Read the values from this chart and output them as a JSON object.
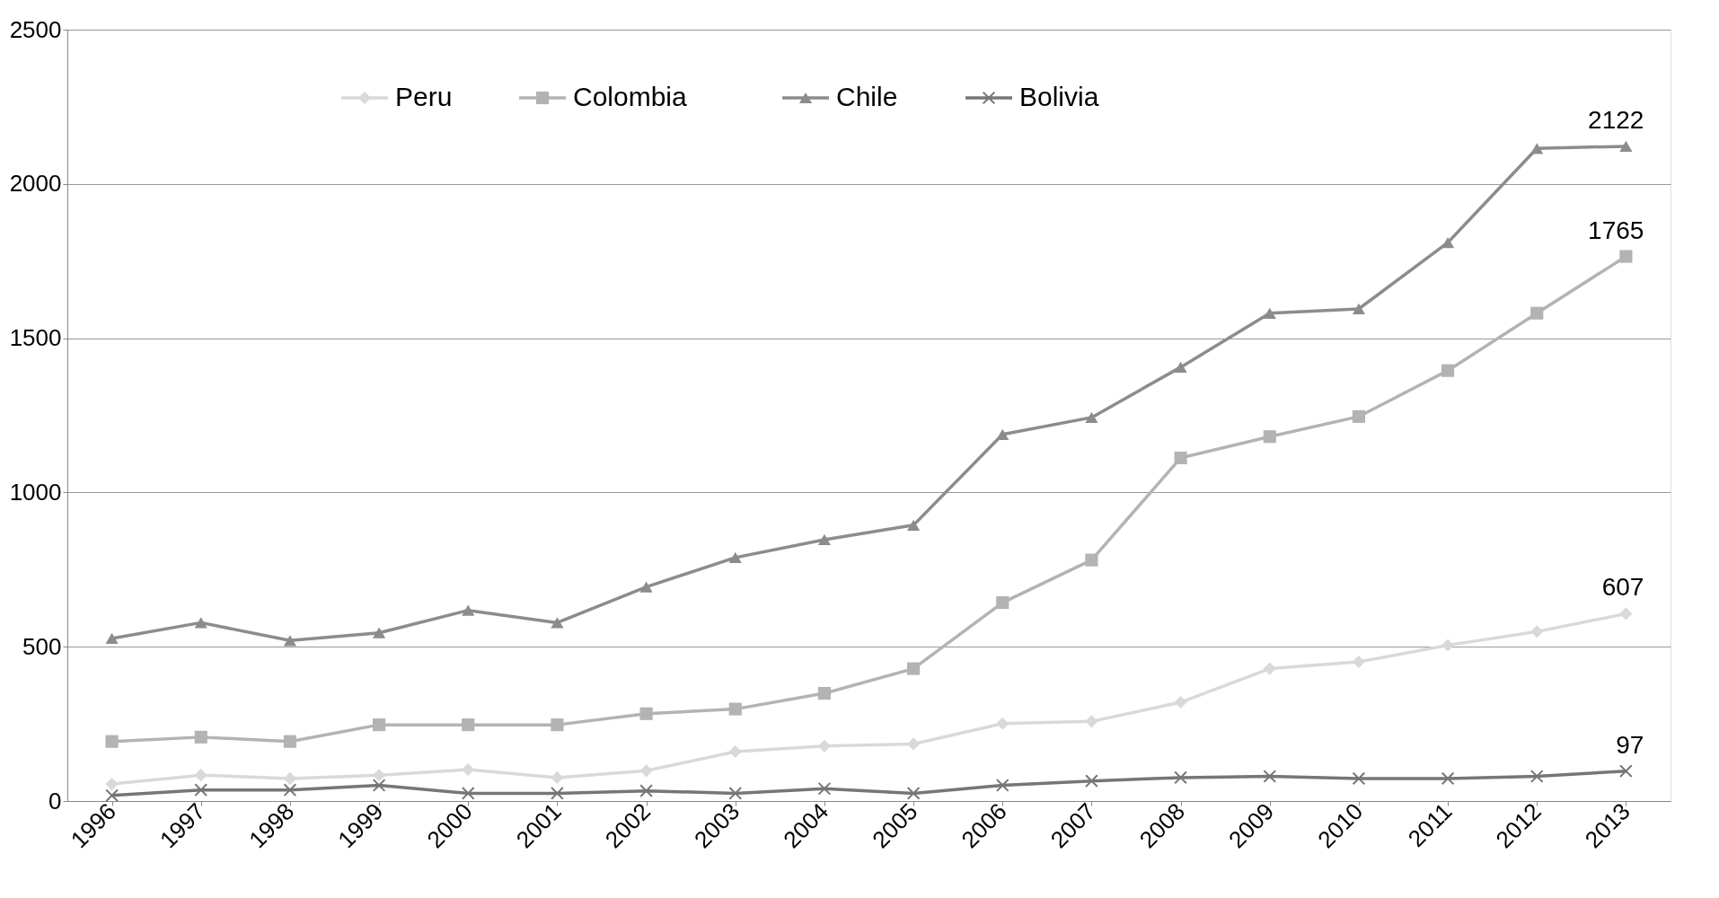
{
  "chart_data": {
    "type": "line",
    "categories": [
      "1996",
      "1997",
      "1998",
      "1999",
      "2000",
      "2001",
      "2002",
      "2003",
      "2004",
      "2005",
      "2006",
      "2007",
      "2008",
      "2009",
      "2010",
      "2011",
      "2012",
      "2013"
    ],
    "series": [
      {
        "name": "Peru",
        "color": "#d9d9d9",
        "marker": "diamond",
        "values": [
          55,
          84,
          73,
          84,
          102,
          76,
          98,
          160,
          178,
          185,
          251,
          258,
          320,
          429,
          451,
          505,
          549,
          607
        ],
        "value_labels": [
          null,
          null,
          null,
          null,
          null,
          null,
          null,
          null,
          null,
          null,
          null,
          null,
          null,
          null,
          null,
          null,
          null,
          "607"
        ]
      },
      {
        "name": "Colombia",
        "color": "#b3b3b3",
        "marker": "square",
        "values": [
          193,
          207,
          193,
          247,
          247,
          247,
          283,
          298,
          349,
          429,
          643,
          781,
          1112,
          1181,
          1246,
          1395,
          1581,
          1765
        ],
        "value_labels": [
          null,
          null,
          null,
          null,
          null,
          null,
          null,
          null,
          null,
          null,
          null,
          null,
          null,
          null,
          null,
          null,
          null,
          "1765"
        ]
      },
      {
        "name": "Chile",
        "color": "#8c8c8c",
        "marker": "triangle",
        "values": [
          527,
          578,
          520,
          545,
          618,
          578,
          694,
          789,
          847,
          894,
          1188,
          1243,
          1406,
          1581,
          1595,
          1810,
          2115,
          2122
        ],
        "value_labels": [
          null,
          null,
          null,
          null,
          null,
          null,
          null,
          null,
          null,
          null,
          null,
          null,
          null,
          null,
          null,
          null,
          null,
          "2122"
        ]
      },
      {
        "name": "Bolivia",
        "color": "#767676",
        "marker": "cross",
        "values": [
          18,
          36,
          36,
          51,
          25,
          25,
          33,
          25,
          40,
          25,
          51,
          65,
          76,
          80,
          73,
          73,
          80,
          97
        ],
        "value_labels": [
          null,
          null,
          null,
          null,
          null,
          null,
          null,
          null,
          null,
          null,
          null,
          null,
          null,
          null,
          null,
          null,
          null,
          "97"
        ]
      }
    ],
    "ylim": [
      0,
      2500
    ],
    "yticks": [
      0,
      500,
      1000,
      1500,
      2000,
      2500
    ],
    "grid": "y",
    "legend": "top",
    "line_style": "solid"
  }
}
